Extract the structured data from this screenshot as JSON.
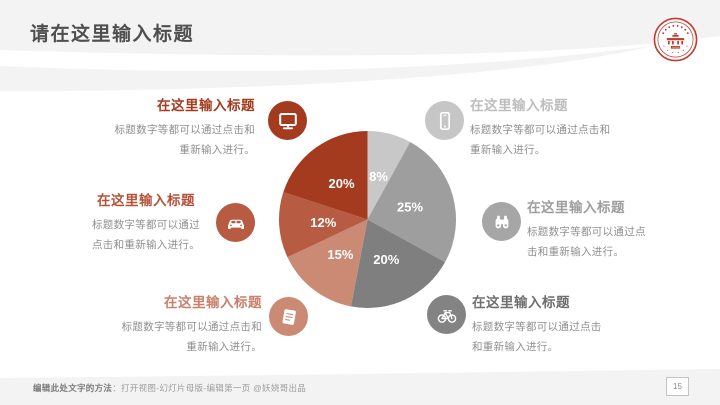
{
  "slide": {
    "title": "请在这里输入标题",
    "page_number": "15",
    "footer": {
      "bold_label": "编辑此处文字的方法",
      "instructions": "：打开视图-幻灯片母版-编辑第一页 @妖娆哥出品"
    },
    "header_band_color": "#f3f3f3",
    "footer_band_color": "#f3f3f3",
    "seal_color": "#c23b2e"
  },
  "items": [
    {
      "position": "top-left",
      "icon": "monitor",
      "title": "在这里输入标题",
      "line1": "标题数字等都可以通过点击和",
      "line2": "重新输入进行。",
      "title_color": "#a43b1f",
      "circle_color": "#a43b1f"
    },
    {
      "position": "top-right",
      "icon": "smartphone",
      "title": "在这里输入标题",
      "line1": "标题数字等都可以通过点击和",
      "line2": "重新输入进行。",
      "title_color": "#bdbdbd",
      "circle_color": "#c6c6c6"
    },
    {
      "position": "middle-left",
      "icon": "car",
      "title": "在这里输入标题",
      "line1": "标题数字等都可以通过",
      "line2": "点击和重新输入进行。",
      "title_color": "#b4533a",
      "circle_color": "#b75b42"
    },
    {
      "position": "middle-right",
      "icon": "binoculars",
      "title": "在这里输入标题",
      "line1": "标题数字等都可以通过点",
      "line2": "击和重新输入进行。",
      "title_color": "#9e9e9e",
      "circle_color": "#a6a6a6"
    },
    {
      "position": "bottom-left",
      "icon": "book",
      "title": "在这里输入标题",
      "line1": "标题数字等都可以通过点击和",
      "line2": "重新输入进行。",
      "title_color": "#c9806a",
      "circle_color": "#cb8a74"
    },
    {
      "position": "bottom-right",
      "icon": "bicycle",
      "title": "在这里输入标题",
      "line1": "标题数字等都可以通过点击",
      "line2": "和重新输入进行。",
      "title_color": "#6f6f6f",
      "circle_color": "#838383"
    }
  ],
  "chart_data": {
    "type": "pie",
    "unit": "%",
    "start_angle_deg": 0,
    "direction": "clockwise",
    "slices": [
      {
        "label": "8%",
        "value": 8,
        "color": "#c8c8c8"
      },
      {
        "label": "25%",
        "value": 25,
        "color": "#9e9e9e"
      },
      {
        "label": "20%",
        "value": 20,
        "color": "#7f7f7f"
      },
      {
        "label": "15%",
        "value": 15,
        "color": "#cb8a74"
      },
      {
        "label": "12%",
        "value": 12,
        "color": "#b75b42"
      },
      {
        "label": "20%",
        "value": 20,
        "color": "#a43b1f"
      }
    ],
    "label_color": "#ffffff",
    "legend": false,
    "title": ""
  }
}
